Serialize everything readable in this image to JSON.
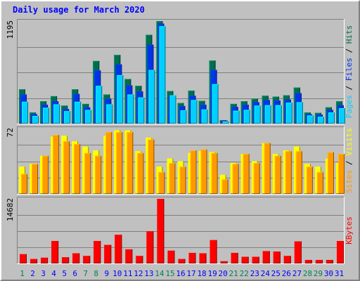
{
  "title": "Daily usage for March 2020",
  "chart_data": [
    {
      "type": "bar",
      "name": "pages-files-hits",
      "categories": [
        "1",
        "2",
        "3",
        "4",
        "5",
        "6",
        "7",
        "8",
        "9",
        "10",
        "11",
        "12",
        "13",
        "14",
        "15",
        "16",
        "17",
        "18",
        "19",
        "20",
        "21",
        "22",
        "23",
        "24",
        "25",
        "26",
        "27",
        "28",
        "29",
        "30",
        "31"
      ],
      "weekend_days": [
        "1",
        "7",
        "8",
        "14",
        "15",
        "21",
        "22",
        "28",
        "29"
      ],
      "ymax_label": "1195",
      "ymax": 1195,
      "series": [
        {
          "name": "Hits",
          "color": "#006e4e",
          "values": [
            400,
            130,
            260,
            320,
            210,
            400,
            230,
            730,
            340,
            800,
            520,
            440,
            1035,
            1195,
            380,
            240,
            385,
            265,
            735,
            40,
            230,
            260,
            290,
            325,
            315,
            330,
            420,
            130,
            125,
            190,
            260
          ]
        },
        {
          "name": "Files",
          "color": "#0034e8",
          "values": [
            340,
            110,
            220,
            260,
            170,
            345,
            190,
            620,
            290,
            690,
            445,
            375,
            920,
            1165,
            330,
            205,
            325,
            220,
            625,
            35,
            195,
            220,
            250,
            275,
            270,
            280,
            355,
            110,
            105,
            160,
            215
          ]
        },
        {
          "name": "Pages",
          "color": "#00cfff",
          "values": [
            255,
            90,
            185,
            225,
            145,
            255,
            160,
            440,
            225,
            565,
            340,
            305,
            625,
            1135,
            330,
            155,
            275,
            165,
            460,
            25,
            150,
            160,
            210,
            215,
            215,
            245,
            250,
            95,
            80,
            130,
            180
          ]
        }
      ]
    },
    {
      "type": "bar",
      "name": "visits-sites",
      "categories": [
        "1",
        "2",
        "3",
        "4",
        "5",
        "6",
        "7",
        "8",
        "9",
        "10",
        "11",
        "12",
        "13",
        "14",
        "15",
        "16",
        "17",
        "18",
        "19",
        "20",
        "21",
        "22",
        "23",
        "24",
        "25",
        "26",
        "27",
        "28",
        "29",
        "30",
        "31"
      ],
      "ymax_label": "72",
      "ymax": 72,
      "series": [
        {
          "name": "Visits",
          "color": "#ffff00",
          "values": [
            30,
            33,
            42,
            63,
            64,
            58,
            52,
            48,
            64,
            70,
            70,
            47,
            62,
            30,
            39,
            36,
            45,
            47,
            46,
            21,
            34,
            44,
            36,
            56,
            44,
            48,
            52,
            33,
            30,
            39,
            34
          ]
        },
        {
          "name": "Sites",
          "color": "#ff9900",
          "values": [
            22,
            33,
            42,
            65,
            58,
            55,
            45,
            42,
            68,
            68,
            68,
            45,
            60,
            24,
            34,
            30,
            48,
            49,
            45,
            16,
            33,
            44,
            34,
            56,
            42,
            47,
            47,
            30,
            24,
            46,
            44
          ]
        }
      ]
    },
    {
      "type": "bar",
      "name": "kbytes",
      "categories": [
        "1",
        "2",
        "3",
        "4",
        "5",
        "6",
        "7",
        "8",
        "9",
        "10",
        "11",
        "12",
        "13",
        "14",
        "15",
        "16",
        "17",
        "18",
        "19",
        "20",
        "21",
        "22",
        "23",
        "24",
        "25",
        "26",
        "27",
        "28",
        "29",
        "30",
        "31"
      ],
      "ymax_label": "14682",
      "ymax": 14682,
      "series": [
        {
          "name": "KBytes",
          "color": "#ff0000",
          "values": [
            2100,
            1000,
            1300,
            5100,
            1400,
            2300,
            1700,
            5100,
            4200,
            6500,
            3200,
            1700,
            7300,
            14682,
            2900,
            1000,
            2400,
            2300,
            5300,
            500,
            2400,
            1500,
            1500,
            2800,
            2700,
            1700,
            5000,
            800,
            800,
            800,
            5100
          ]
        }
      ]
    }
  ],
  "axis_titles": {
    "top": [
      {
        "text": "Pages",
        "color": "#00cfff"
      },
      {
        "text": " / ",
        "color": "#000000"
      },
      {
        "text": "Files",
        "color": "#0034e8"
      },
      {
        "text": " / ",
        "color": "#000000"
      },
      {
        "text": "Hits",
        "color": "#006e4e"
      }
    ],
    "middle": [
      {
        "text": "Sites",
        "color": "#ff9900"
      },
      {
        "text": " / ",
        "color": "#000000"
      },
      {
        "text": "Visits",
        "color": "#ffff00"
      }
    ],
    "bottom": [
      {
        "text": "KBytes",
        "color": "#ff0000"
      }
    ]
  },
  "colors": {
    "background": "#c0c0c0",
    "title": "#0000ff",
    "weekday_label": "#0000ff",
    "weekend_label": "#00805c",
    "grid": "#808080"
  }
}
